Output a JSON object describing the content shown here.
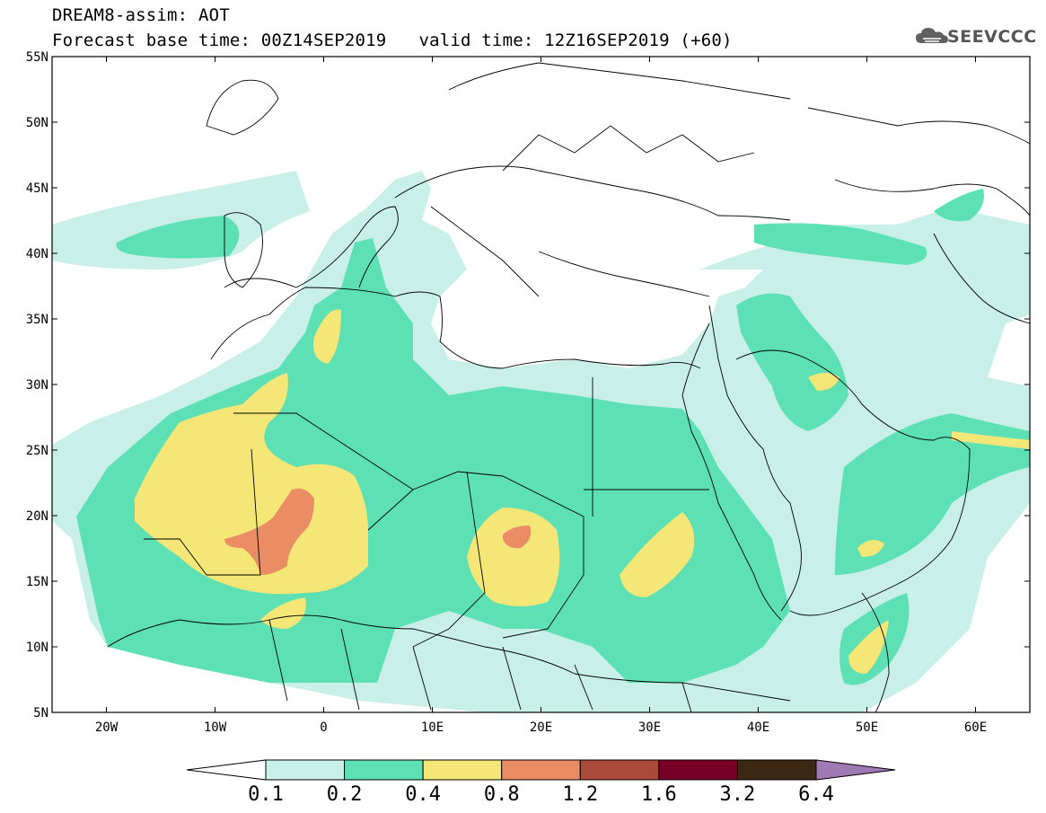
{
  "header": {
    "model_field": "DREAM8-assim: AOT",
    "base_time": "Forecast base time: 00Z14SEP2019",
    "valid_time": "valid time: 12Z16SEP2019 (+60)"
  },
  "logo": {
    "text": "SEEVCCC",
    "icon": "cloud-icon"
  },
  "map": {
    "lon_range": [
      -25,
      65
    ],
    "lat_range": [
      5,
      55
    ],
    "lon_ticks": [
      "20W",
      "10W",
      "0",
      "10E",
      "20E",
      "30E",
      "40E",
      "50E",
      "60E"
    ],
    "lat_ticks": [
      "5N",
      "10N",
      "15N",
      "20N",
      "25N",
      "30N",
      "35N",
      "40N",
      "45N",
      "50N",
      "55N"
    ]
  },
  "colorbar": {
    "labels": [
      "0.1",
      "0.2",
      "0.4",
      "0.8",
      "1.2",
      "1.6",
      "3.2",
      "6.4"
    ],
    "colors": [
      "#ffffff",
      "#c8f0e8",
      "#5ce0b4",
      "#f5e678",
      "#ea8c64",
      "#aa4a3a",
      "#780028",
      "#3c2814",
      "#a07ab4"
    ]
  }
}
